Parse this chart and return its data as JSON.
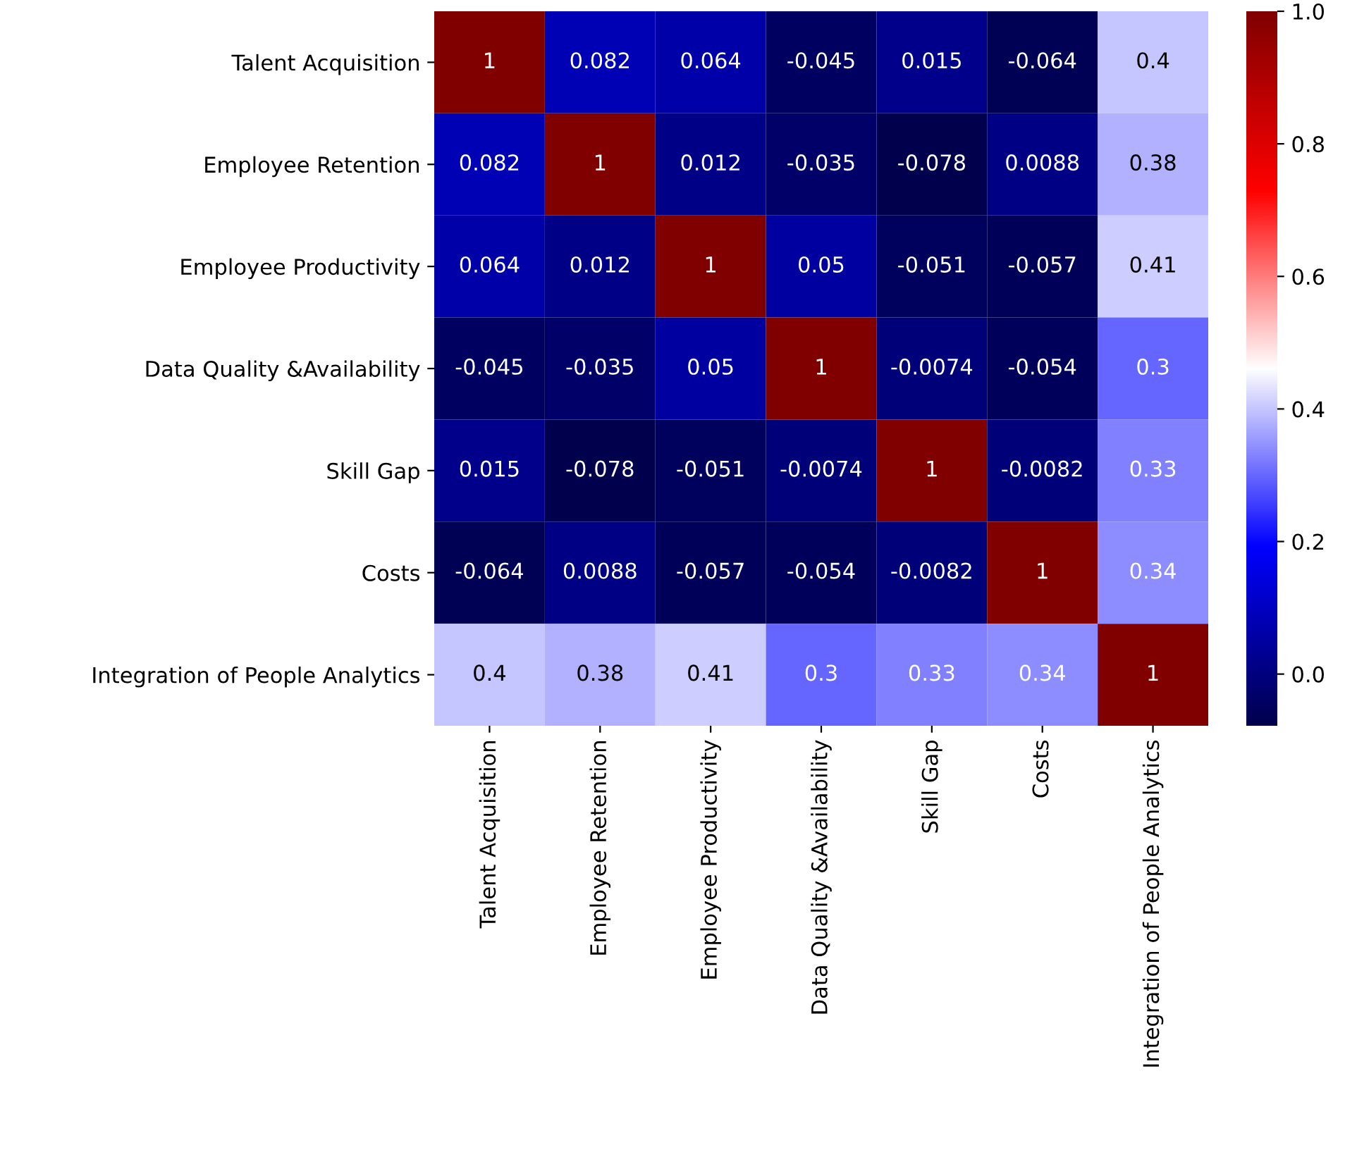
{
  "chart_data": {
    "type": "heatmap",
    "categories": [
      "Talent Acquisition",
      "Employee Retention",
      "Employee Productivity",
      "Data Quality &Availability",
      "Skill Gap",
      "Costs",
      "Integration of People Analytics"
    ],
    "y_categories": [
      "Talent Acquisition",
      "Employee Retention",
      "Employee Productivity",
      "Data Quality &Availability",
      "Skill Gap",
      "Costs",
      "Integration of People Analytics"
    ],
    "cells": [
      [
        1,
        0.082,
        0.064,
        -0.045,
        0.015,
        -0.064,
        0.4
      ],
      [
        0.082,
        1,
        0.012,
        -0.035,
        -0.078,
        0.0088,
        0.38
      ],
      [
        0.064,
        0.012,
        1,
        0.05,
        -0.051,
        -0.057,
        0.41
      ],
      [
        -0.045,
        -0.035,
        0.05,
        1,
        -0.0074,
        -0.054,
        0.3
      ],
      [
        0.015,
        -0.078,
        -0.051,
        -0.0074,
        1,
        -0.0082,
        0.33
      ],
      [
        -0.064,
        0.0088,
        -0.057,
        -0.054,
        -0.0082,
        1,
        0.34
      ],
      [
        0.4,
        0.38,
        0.41,
        0.3,
        0.33,
        0.34,
        1
      ]
    ],
    "clim": [
      -0.078,
      1.0
    ],
    "cticks": [
      {
        "value": 0.0,
        "label": "0.0"
      },
      {
        "value": 0.2,
        "label": "0.2"
      },
      {
        "value": 0.4,
        "label": "0.4"
      },
      {
        "value": 0.6,
        "label": "0.6"
      },
      {
        "value": 0.8,
        "label": "0.8"
      },
      {
        "value": 1.0,
        "label": "1.0"
      }
    ],
    "data_labels": true
  }
}
